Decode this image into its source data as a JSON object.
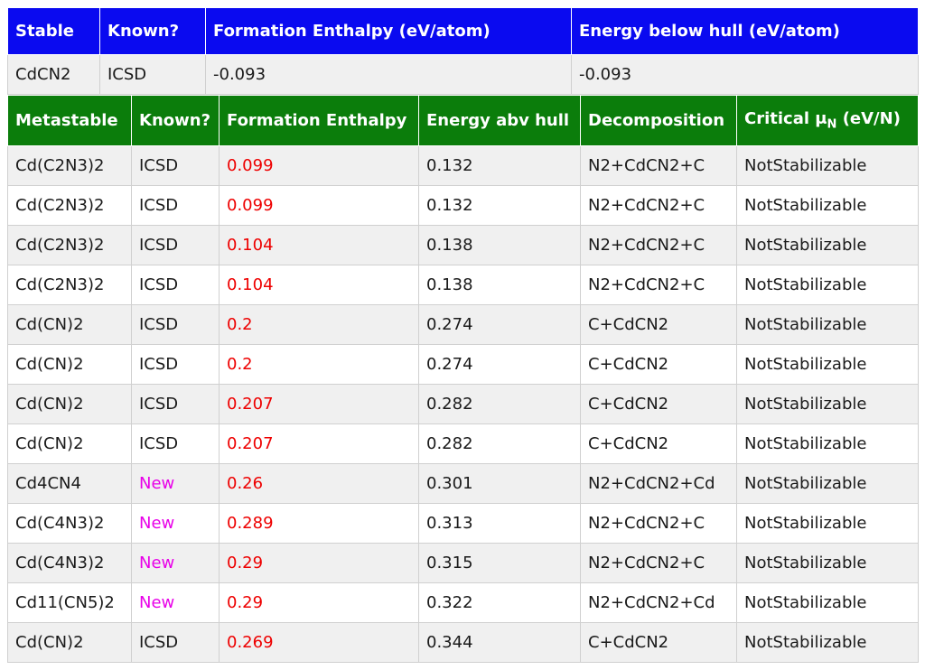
{
  "stable_table": {
    "headers": [
      "Stable",
      "Known?",
      "Formation Enthalpy (eV/atom)",
      "Energy below hull (eV/atom)"
    ],
    "rows": [
      [
        "CdCN2",
        "ICSD",
        "-0.093",
        "-0.093"
      ]
    ]
  },
  "metastable_table": {
    "headers": [
      "Metastable",
      "Known?",
      "Formation Enthalpy",
      "Energy abv hull",
      "Decomposition"
    ],
    "critical_header": {
      "prefix": "Critical μ",
      "sub": "N",
      "suffix": " (eV/N)"
    },
    "rows": [
      [
        "Cd(C2N3)2",
        "ICSD",
        "0.099",
        "0.132",
        "N2+CdCN2+C",
        "NotStabilizable"
      ],
      [
        "Cd(C2N3)2",
        "ICSD",
        "0.099",
        "0.132",
        "N2+CdCN2+C",
        "NotStabilizable"
      ],
      [
        "Cd(C2N3)2",
        "ICSD",
        "0.104",
        "0.138",
        "N2+CdCN2+C",
        "NotStabilizable"
      ],
      [
        "Cd(C2N3)2",
        "ICSD",
        "0.104",
        "0.138",
        "N2+CdCN2+C",
        "NotStabilizable"
      ],
      [
        "Cd(CN)2",
        "ICSD",
        "0.2",
        "0.274",
        "C+CdCN2",
        "NotStabilizable"
      ],
      [
        "Cd(CN)2",
        "ICSD",
        "0.2",
        "0.274",
        "C+CdCN2",
        "NotStabilizable"
      ],
      [
        "Cd(CN)2",
        "ICSD",
        "0.207",
        "0.282",
        "C+CdCN2",
        "NotStabilizable"
      ],
      [
        "Cd(CN)2",
        "ICSD",
        "0.207",
        "0.282",
        "C+CdCN2",
        "NotStabilizable"
      ],
      [
        "Cd4CN4",
        "New",
        "0.26",
        "0.301",
        "N2+CdCN2+Cd",
        "NotStabilizable"
      ],
      [
        "Cd(C4N3)2",
        "New",
        "0.289",
        "0.313",
        "N2+CdCN2+C",
        "NotStabilizable"
      ],
      [
        "Cd(C4N3)2",
        "New",
        "0.29",
        "0.315",
        "N2+CdCN2+C",
        "NotStabilizable"
      ],
      [
        "Cd11(CN5)2",
        "New",
        "0.29",
        "0.322",
        "N2+CdCN2+Cd",
        "NotStabilizable"
      ],
      [
        "Cd(CN)2",
        "ICSD",
        "0.269",
        "0.344",
        "C+CdCN2",
        "NotStabilizable"
      ]
    ]
  },
  "colors": {
    "stable_header_bg": "#0a0af0",
    "metastable_header_bg": "#0b7d0b",
    "enthalpy_text": "#ee0000",
    "new_text": "#e800e8"
  }
}
